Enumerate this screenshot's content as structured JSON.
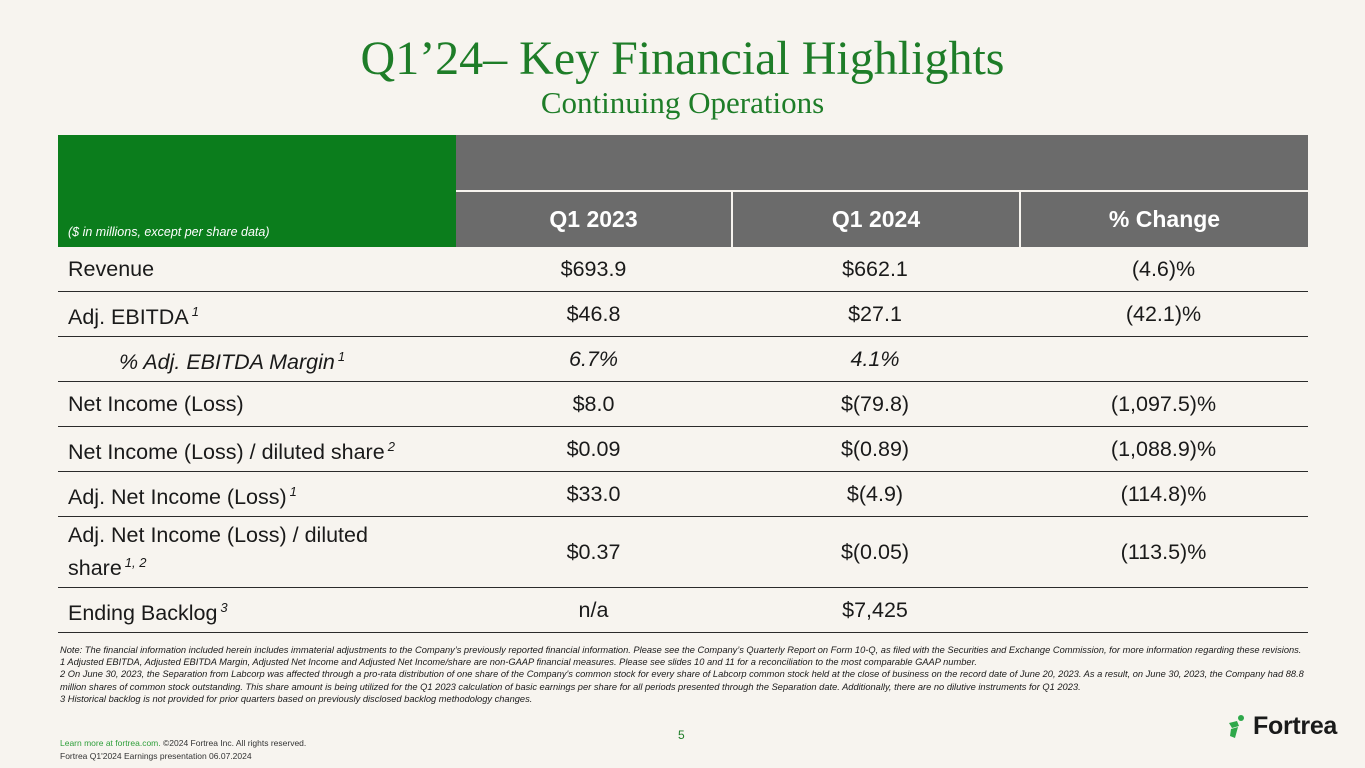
{
  "title": "Q1’24– Key Financial Highlights",
  "subtitle": "Continuing Operations",
  "table": {
    "units_note": "($ in millions, except per share data)",
    "columns": [
      "Q1 2023",
      "Q1 2024",
      "% Change"
    ],
    "rows": [
      {
        "label": "Revenue",
        "sup": "",
        "q1_2023": "$693.9",
        "q1_2024": "$662.1",
        "change": "(4.6)%"
      },
      {
        "label": "Adj. EBITDA",
        "sup": "1",
        "q1_2023": "$46.8",
        "q1_2024": "$27.1",
        "change": "(42.1)%"
      },
      {
        "label": "% Adj. EBITDA Margin",
        "sup": "1",
        "q1_2023": "6.7%",
        "q1_2024": "4.1%",
        "change": ""
      },
      {
        "label": "Net Income (Loss)",
        "sup": "",
        "q1_2023": "$8.0",
        "q1_2024": "$(79.8)",
        "change": "(1,097.5)%"
      },
      {
        "label": "Net Income (Loss) / diluted share",
        "sup": "2",
        "q1_2023": "$0.09",
        "q1_2024": "$(0.89)",
        "change": "(1,088.9)%"
      },
      {
        "label": "Adj. Net Income (Loss)",
        "sup": "1",
        "q1_2023": "$33.0",
        "q1_2024": "$(4.9)",
        "change": "(114.8)%"
      },
      {
        "label": "Adj. Net Income (Loss) / diluted share",
        "sup": "1, 2",
        "q1_2023": "$0.37",
        "q1_2024": "$(0.05)",
        "change": "(113.5)%"
      },
      {
        "label": "Ending Backlog",
        "sup": "3",
        "q1_2023": "n/a",
        "q1_2024": "$7,425",
        "change": ""
      }
    ]
  },
  "notes": [
    "Note: The financial information included herein includes immaterial adjustments to the Company’s previously reported financial information. Please see the Company’s Quarterly Report on Form 10-Q, as filed with the Securities and Exchange Commission, for more information regarding these revisions.",
    "1 Adjusted EBITDA, Adjusted EBITDA Margin, Adjusted Net Income and Adjusted Net Income/share are non-GAAP financial measures.  Please see slides 10 and 11 for a reconciliation to the most comparable GAAP number.",
    "2 On June 30, 2023, the Separation from Labcorp was affected through a pro-rata distribution of one share of the Company's common stock for every share of Labcorp common stock held at the close of business on the record date of June 20, 2023. As a result, on June 30, 2023, the Company had 88.8 million shares of common stock outstanding. This share amount is being utilized for the Q1 2023 calculation of basic earnings per share for all periods presented through the Separation date.  Additionally, there are no dilutive instruments for Q1 2023.",
    "3 Historical backlog is not provided for prior quarters based on previously disclosed backlog methodology changes."
  ],
  "footer": {
    "link_text": "Learn more at fortrea.com.",
    "copyright": " ©2024 Fortrea Inc. All rights reserved.",
    "presentation": "Fortrea Q1'2024 Earnings presentation 06.07.2024",
    "page_number": "5"
  },
  "logo": {
    "wordmark": "Fortrea",
    "icon": "fortrea-leaf-icon",
    "colors": {
      "icon": "#2ea84a",
      "wordmark": "#1a1a1a"
    }
  },
  "colors": {
    "title": "#1e7d28",
    "header_green": "#0b7d1c",
    "header_gray": "#6b6b6b",
    "background": "#f7f4ef"
  }
}
